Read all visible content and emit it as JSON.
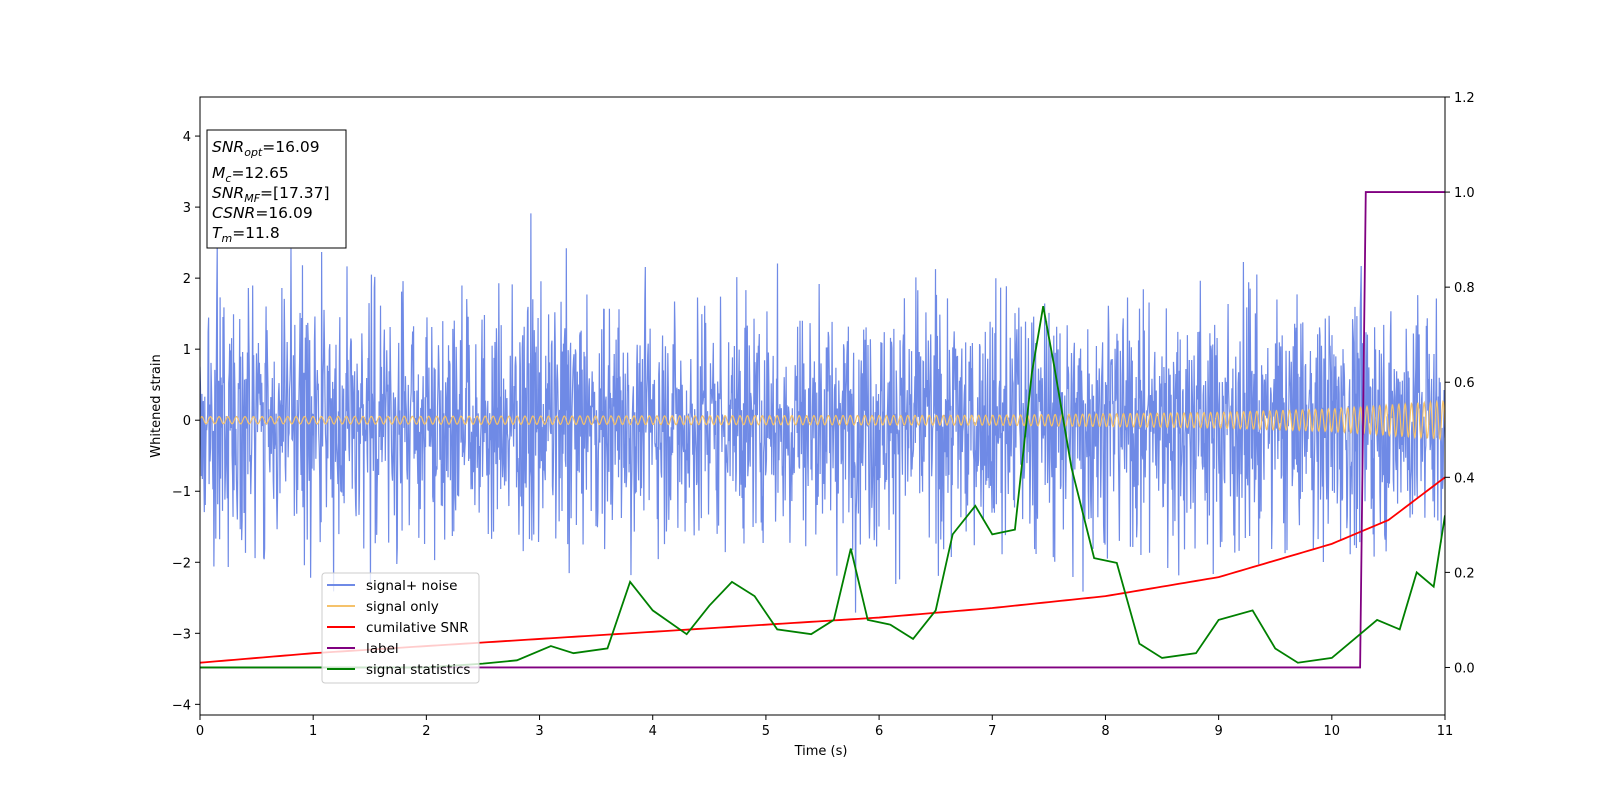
{
  "chart_data": {
    "type": "line",
    "xlabel": "Time (s)",
    "ylabel": "Whitened strain",
    "xlim": [
      0,
      11
    ],
    "ylim_left": [
      -4.15,
      4.55
    ],
    "ylim_right": [
      -0.1,
      1.2
    ],
    "xticks": [
      "0",
      "1",
      "2",
      "3",
      "4",
      "5",
      "6",
      "7",
      "8",
      "9",
      "10",
      "11"
    ],
    "yticks_left": [
      "−4",
      "−3",
      "−2",
      "−1",
      "0",
      "1",
      "2",
      "3",
      "4"
    ],
    "yticks_right": [
      "0.0",
      "0.2",
      "0.4",
      "0.6",
      "0.8",
      "1.0",
      "1.2"
    ],
    "annotation": {
      "lines": [
        {
          "sym": "SNR",
          "sub": "opt",
          "val": "=16.09"
        },
        {
          "sym": "M",
          "sub": "c",
          "val": "=12.65"
        },
        {
          "sym": "SNR",
          "sub": "MF",
          "val": "=[17.37]"
        },
        {
          "sym": "CSNR",
          "sub": "",
          "val": "=16.09"
        },
        {
          "sym": "T",
          "sub": "m",
          "val": "=11.8"
        }
      ]
    },
    "legend_position": "lower-left",
    "series": [
      {
        "name": "signal+ noise",
        "axis": "left",
        "color": "#6f8ae6",
        "kind": "noise",
        "description": "whitened noise, amplitude about ±2.5, peaks near 3"
      },
      {
        "name": "signal only",
        "axis": "left",
        "color": "#f5c26b",
        "kind": "chirp",
        "envelope": [
          [
            0,
            0.05
          ],
          [
            7,
            0.07
          ],
          [
            9,
            0.11
          ],
          [
            10,
            0.16
          ],
          [
            11,
            0.27
          ]
        ]
      },
      {
        "name": "cumilative SNR",
        "axis": "right",
        "color": "#ff0000",
        "points": [
          [
            0,
            0.01
          ],
          [
            1,
            0.03
          ],
          [
            2,
            0.045
          ],
          [
            3,
            0.06
          ],
          [
            4,
            0.075
          ],
          [
            5,
            0.09
          ],
          [
            6,
            0.105
          ],
          [
            7,
            0.125
          ],
          [
            8,
            0.15
          ],
          [
            9,
            0.19
          ],
          [
            10,
            0.26
          ],
          [
            10.5,
            0.31
          ],
          [
            11,
            0.4
          ]
        ]
      },
      {
        "name": "label",
        "axis": "right",
        "color": "#800080",
        "points": [
          [
            0,
            0
          ],
          [
            10.25,
            0
          ],
          [
            10.3,
            1
          ],
          [
            11,
            1
          ]
        ]
      },
      {
        "name": "signal statistics",
        "axis": "right",
        "color": "#008000",
        "points": [
          [
            0,
            0
          ],
          [
            2,
            0
          ],
          [
            2.5,
            0.008
          ],
          [
            2.8,
            0.015
          ],
          [
            3.1,
            0.045
          ],
          [
            3.3,
            0.03
          ],
          [
            3.6,
            0.04
          ],
          [
            3.8,
            0.18
          ],
          [
            4.0,
            0.12
          ],
          [
            4.3,
            0.07
          ],
          [
            4.5,
            0.13
          ],
          [
            4.7,
            0.18
          ],
          [
            4.9,
            0.15
          ],
          [
            5.1,
            0.08
          ],
          [
            5.4,
            0.07
          ],
          [
            5.6,
            0.1
          ],
          [
            5.75,
            0.25
          ],
          [
            5.9,
            0.1
          ],
          [
            6.1,
            0.09
          ],
          [
            6.3,
            0.06
          ],
          [
            6.5,
            0.12
          ],
          [
            6.65,
            0.28
          ],
          [
            6.85,
            0.34
          ],
          [
            7.0,
            0.28
          ],
          [
            7.2,
            0.29
          ],
          [
            7.35,
            0.62
          ],
          [
            7.45,
            0.76
          ],
          [
            7.55,
            0.63
          ],
          [
            7.7,
            0.42
          ],
          [
            7.9,
            0.23
          ],
          [
            8.1,
            0.22
          ],
          [
            8.3,
            0.05
          ],
          [
            8.5,
            0.02
          ],
          [
            8.8,
            0.03
          ],
          [
            9.0,
            0.1
          ],
          [
            9.3,
            0.12
          ],
          [
            9.5,
            0.04
          ],
          [
            9.7,
            0.01
          ],
          [
            10.0,
            0.02
          ],
          [
            10.2,
            0.06
          ],
          [
            10.4,
            0.1
          ],
          [
            10.6,
            0.08
          ],
          [
            10.75,
            0.2
          ],
          [
            10.9,
            0.17
          ],
          [
            11.0,
            0.32
          ]
        ]
      }
    ]
  }
}
